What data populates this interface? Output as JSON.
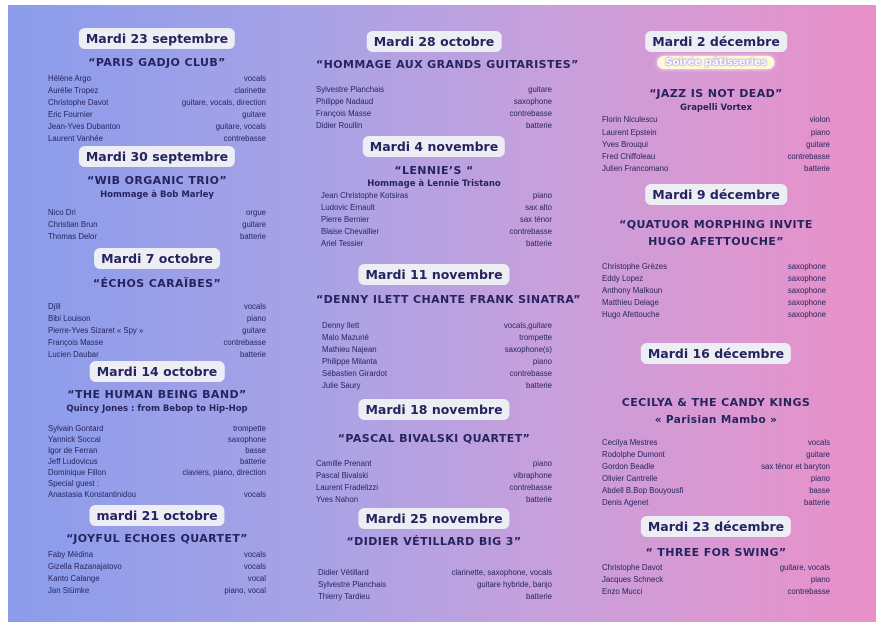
{
  "columns": [
    {
      "events": [
        {
          "date": "Mardi 23 septembre",
          "title": "“PARIS GADJO CLUB”",
          "subtitle": "",
          "members": [
            {
              "name": "Hélène Argo",
              "instrument": "vocals"
            },
            {
              "name": "Aurélie Tropez",
              "instrument": "clarinette"
            },
            {
              "name": "Christophe Davot",
              "instrument": "guitare, vocals, direction"
            },
            {
              "name": "Eric Fournier",
              "instrument": "guitare"
            },
            {
              "name": "Jean-Yves Dubanton",
              "instrument": "guitare, vocals"
            },
            {
              "name": "Laurent Vanhée",
              "instrument": "contrebasse"
            }
          ]
        },
        {
          "date": "Mardi 30 septembre",
          "title": "“WIB ORGANIC TRIO”",
          "subtitle": "Hommage à Bob Marley",
          "members": [
            {
              "name": "Nico Dri",
              "instrument": "orgue"
            },
            {
              "name": "Christian Brun",
              "instrument": "guitare"
            },
            {
              "name": "Thomas Delor",
              "instrument": "batterie"
            }
          ]
        },
        {
          "date": "Mardi 7 octobre",
          "title": "“ÉCHOS  CARAÏBES”",
          "subtitle": "",
          "members": [
            {
              "name": "Djill",
              "instrument": "vocals"
            },
            {
              "name": "Bibi Louison",
              "instrument": "piano"
            },
            {
              "name": "Pierre-Yves Sizaret « Spy »",
              "instrument": "guitare"
            },
            {
              "name": "François Masse",
              "instrument": "contrebasse"
            },
            {
              "name": "Lucien Daubar",
              "instrument": "batterie"
            }
          ]
        },
        {
          "date": "Mardi 14 octobre",
          "title": "“THE HUMAN BEING BAND”",
          "subtitle": "Quincy Jones : from Bebop to Hip-Hop",
          "members": [
            {
              "name": "Sylvain Gontard",
              "instrument": "trompette"
            },
            {
              "name": "Yannick Soccal",
              "instrument": "saxophone"
            },
            {
              "name": "Igor de Ferran",
              "instrument": "basse"
            },
            {
              "name": "Jeff Ludovicus",
              "instrument": "batterie"
            },
            {
              "name": "Dominique Fillon",
              "instrument": "claviers, piano, direction"
            },
            {
              "name": "Special guest :",
              "instrument": ""
            },
            {
              "name": "Anastasia Konstantinidou",
              "instrument": "vocals"
            }
          ]
        },
        {
          "date": "mardi 21 octobre",
          "title": "“JOYFUL ECHOES QUARTET”",
          "subtitle": "",
          "members": [
            {
              "name": "Faby Médina",
              "instrument": "vocals"
            },
            {
              "name": "Gizella Razanajatovo",
              "instrument": "vocals"
            },
            {
              "name": "Kanto Calange",
              "instrument": "vocal"
            },
            {
              "name": "Jan Stümke",
              "instrument": "piano, vocal"
            }
          ]
        }
      ]
    },
    {
      "events": [
        {
          "date": "Mardi 28 octobre",
          "title": "“HOMMAGE AUX GRANDS GUITARISTES”",
          "subtitle": "",
          "members": [
            {
              "name": "Sylvestre Planchais",
              "instrument": "guitare"
            },
            {
              "name": "Philippe Nadaud",
              "instrument": "saxophone"
            },
            {
              "name": "François Masse",
              "instrument": "contrebasse"
            },
            {
              "name": "Didier Roullin",
              "instrument": "batterie"
            }
          ]
        },
        {
          "date": "Mardi 4 novembre",
          "title": "“LENNIE’S “",
          "subtitle": "Hommage à Lennie Tristano",
          "members": [
            {
              "name": "Jean Christophe Kotsiras",
              "instrument": "piano"
            },
            {
              "name": "Ludovic Ernault",
              "instrument": "sax alto"
            },
            {
              "name": "Pierre Bernier",
              "instrument": "sax ténor"
            },
            {
              "name": "Blaise Chevallier",
              "instrument": "contrebasse"
            },
            {
              "name": "Ariel Tessier",
              "instrument": "batterie"
            }
          ]
        },
        {
          "date": "Mardi 11 novembre",
          "title": "“DENNY ILETT CHANTE FRANK SINATRA”",
          "subtitle": "",
          "members": [
            {
              "name": "Denny Ilett",
              "instrument": "vocals,guitare"
            },
            {
              "name": "Malo Mazurié",
              "instrument": "trompette"
            },
            {
              "name": "Mathieu Najean",
              "instrument": "saxophone(s)"
            },
            {
              "name": "Philippe Milanta",
              "instrument": "piano"
            },
            {
              "name": "Sébastien Girardot",
              "instrument": "contrebasse"
            },
            {
              "name": "Julie Saury",
              "instrument": "batterie"
            }
          ]
        },
        {
          "date": "Mardi 18 novembre",
          "title": "“PASCAL BIVALSKI QUARTET”",
          "subtitle": "",
          "members": [
            {
              "name": "Camille Prenant",
              "instrument": "piano"
            },
            {
              "name": "Pascal Bivalski",
              "instrument": "vibraphone"
            },
            {
              "name": "Laurent Fradelizzi",
              "instrument": "contrebasse"
            },
            {
              "name": "Yves Nahon",
              "instrument": "batterie"
            }
          ]
        },
        {
          "date": "Mardi 25 novembre",
          "title": "“DIDIER VÉTILLARD BIG 3”",
          "subtitle": "",
          "members": [
            {
              "name": "Didier Vétillard",
              "instrument": "clarinette, saxophone, vocals"
            },
            {
              "name": "Sylvestre Planchais",
              "instrument": "guitare hybride, banjo"
            },
            {
              "name": "Thierry Tardieu",
              "instrument": "batterie"
            }
          ]
        }
      ]
    },
    {
      "events": [
        {
          "date": "Mardi 2 décembre",
          "badge": "Soirée pâtisseries",
          "title": "“JAZZ IS NOT DEAD”",
          "subtitle": "Grapelli Vortex",
          "members": [
            {
              "name": "Florin Niculescu",
              "instrument": "violon"
            },
            {
              "name": "Laurent Epstein",
              "instrument": "piano"
            },
            {
              "name": "Yves Brouqui",
              "instrument": "guitare"
            },
            {
              "name": "Fred Chiffoleau",
              "instrument": "contrebasse"
            },
            {
              "name": "Julien Francomano",
              "instrument": "batterie"
            }
          ]
        },
        {
          "date": "Mardi 9 décembre",
          "title": "“QUATUOR MORPHING INVITE",
          "title2": "HUGO AFETTOUCHE”",
          "subtitle": "",
          "members": [
            {
              "name": "Christophe Grèzes",
              "instrument": "saxophone"
            },
            {
              "name": "Eddy Lopez",
              "instrument": "saxophone"
            },
            {
              "name": "Anthony Malkoun",
              "instrument": "saxophone"
            },
            {
              "name": "Matthieu Delage",
              "instrument": "saxophone"
            },
            {
              "name": "Hugo Afettouche",
              "instrument": "saxophone"
            }
          ]
        },
        {
          "date": "Mardi 16 décembre",
          "title": "CECILYA & THE CANDY KINGS",
          "subtitle": "« Parisian Mambo »",
          "members": [
            {
              "name": "Cecilya Mestres",
              "instrument": "vocals"
            },
            {
              "name": "Rodolphe Dumont",
              "instrument": "guitare"
            },
            {
              "name": "Gordon Beadle",
              "instrument": "sax ténor et baryton"
            },
            {
              "name": "Olivier Cantrelle",
              "instrument": "piano"
            },
            {
              "name": "Abdell B.Bop Bouyousfi",
              "instrument": "basse"
            },
            {
              "name": "Denis Agenet",
              "instrument": "batterie"
            }
          ]
        },
        {
          "date": "Mardi 23 décembre",
          "title": "“ THREE FOR SWING”",
          "subtitle": "",
          "members": [
            {
              "name": "Christophe Davot",
              "instrument": "guitare, vocals"
            },
            {
              "name": "Jacques Schneck",
              "instrument": "piano"
            },
            {
              "name": "Enzo Mucci",
              "instrument": "contrebasse"
            }
          ]
        }
      ]
    }
  ]
}
